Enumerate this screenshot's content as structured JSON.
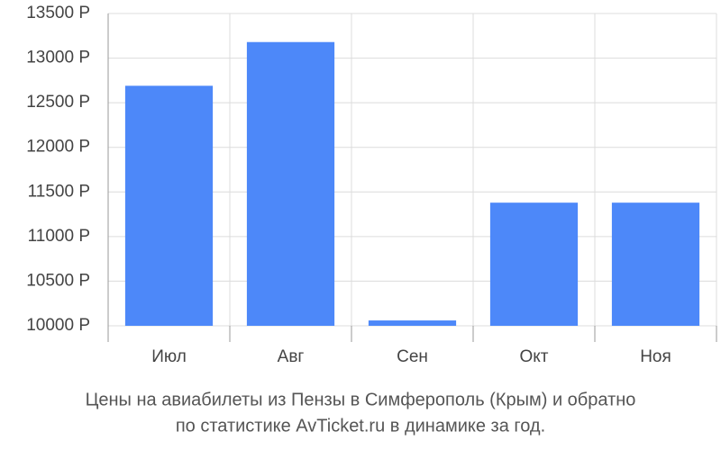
{
  "chart_data": {
    "type": "bar",
    "title": [
      "Цены на авиабилеты из Пензы в Симферополь (Крым) и обратно",
      "по статистике AvTicket.ru в динамике за год."
    ],
    "categories": [
      "Июл",
      "Авг",
      "Сен",
      "Окт",
      "Ноя"
    ],
    "values": [
      12690,
      13180,
      10060,
      11380,
      11380
    ],
    "color": "#4d88f9",
    "ylim": [
      10000,
      13500
    ],
    "yticks": [
      {
        "value": 10000,
        "label": "10000 Р"
      },
      {
        "value": 10500,
        "label": "10500 Р"
      },
      {
        "value": 11000,
        "label": "11000 Р"
      },
      {
        "value": 11500,
        "label": "11500 Р"
      },
      {
        "value": 12000,
        "label": "12000 Р"
      },
      {
        "value": 12500,
        "label": "12500 Р"
      },
      {
        "value": 13000,
        "label": "13000 Р"
      },
      {
        "value": 13500,
        "label": "13500 Р"
      }
    ],
    "grid": true
  }
}
